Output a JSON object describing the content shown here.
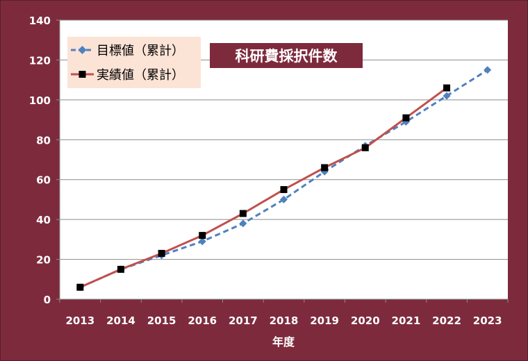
{
  "chart_data": {
    "type": "line",
    "title": "科研費採択件数",
    "xlabel": "年度",
    "ylabel": "",
    "categories": [
      "2013",
      "2014",
      "2015",
      "2016",
      "2017",
      "2018",
      "2019",
      "2020",
      "2021",
      "2022",
      "2023"
    ],
    "ylim": [
      0,
      140
    ],
    "yticks": [
      "0",
      "20",
      "40",
      "60",
      "80",
      "100",
      "120",
      "140"
    ],
    "grid": true,
    "legend_position": "top-left",
    "series": [
      {
        "name": "目標値（累計）",
        "values": [
          6,
          15,
          22,
          29,
          38,
          50,
          64,
          77,
          89,
          102,
          115
        ],
        "color": "#4f81bd",
        "line_style": "dashed",
        "marker": "diamond"
      },
      {
        "name": "実績値（累計）",
        "values": [
          6,
          15,
          23,
          32,
          43,
          55,
          66,
          76,
          91,
          106,
          null
        ],
        "color": "#c0504d",
        "line_style": "solid",
        "marker": "square",
        "marker_color": "#000000"
      }
    ]
  },
  "colors": {
    "frame": "#7e2a3d",
    "plot_background": "#ffffff",
    "legend_background": "#fbe3d6",
    "title_background": "#7e2a3d"
  }
}
